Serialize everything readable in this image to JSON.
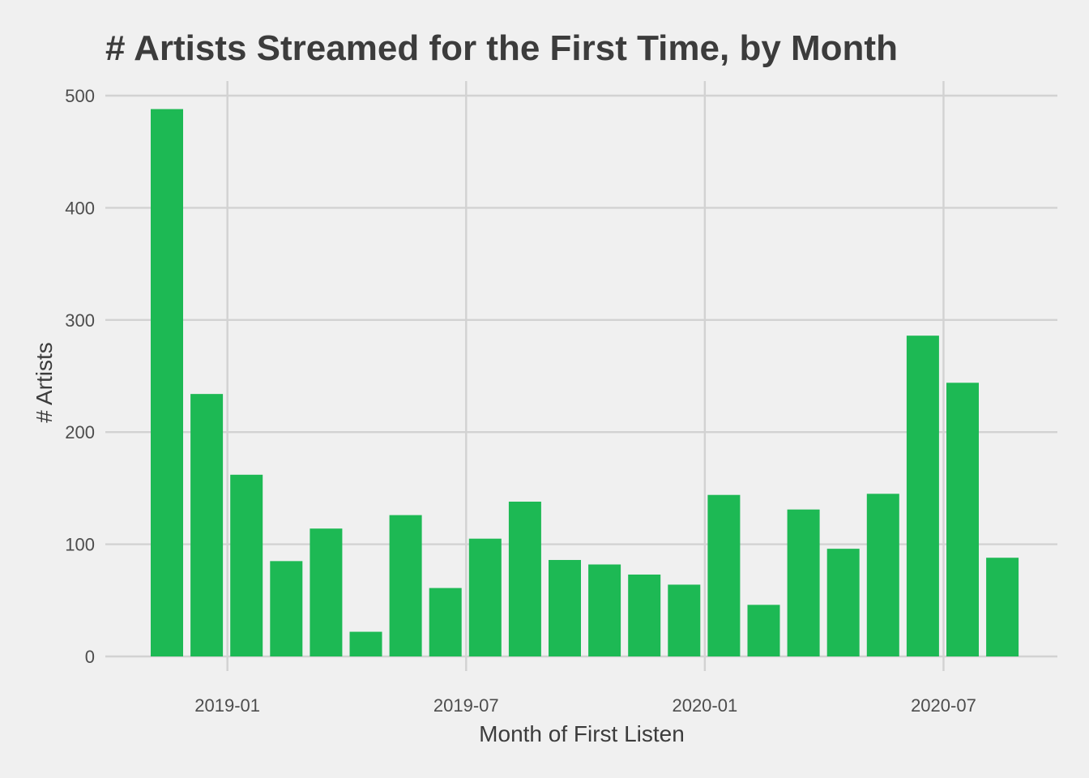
{
  "chart_data": {
    "type": "bar",
    "title": "# Artists Streamed for the First Time, by Month",
    "xlabel": "Month of First Listen",
    "ylabel": "# Artists",
    "x_axis_type": "date",
    "x": [
      "2018-11",
      "2018-12",
      "2019-01",
      "2019-02",
      "2019-03",
      "2019-04",
      "2019-05",
      "2019-06",
      "2019-07",
      "2019-08",
      "2019-09",
      "2019-10",
      "2019-11",
      "2019-12",
      "2020-01",
      "2020-02",
      "2020-03",
      "2020-04",
      "2020-05",
      "2020-06",
      "2020-07",
      "2020-08"
    ],
    "values": [
      488,
      234,
      162,
      85,
      114,
      22,
      126,
      61,
      105,
      138,
      86,
      82,
      73,
      64,
      144,
      46,
      131,
      96,
      145,
      286,
      244,
      88
    ],
    "x_ticks": [
      "2019-01",
      "2019-07",
      "2020-01",
      "2020-07"
    ],
    "y_ticks": [
      0,
      100,
      200,
      300,
      400,
      500
    ],
    "ylim": [
      0,
      500
    ],
    "bar_color": "#1db954",
    "background_color": "#f0f0f0",
    "grid": true,
    "legend": "none"
  }
}
